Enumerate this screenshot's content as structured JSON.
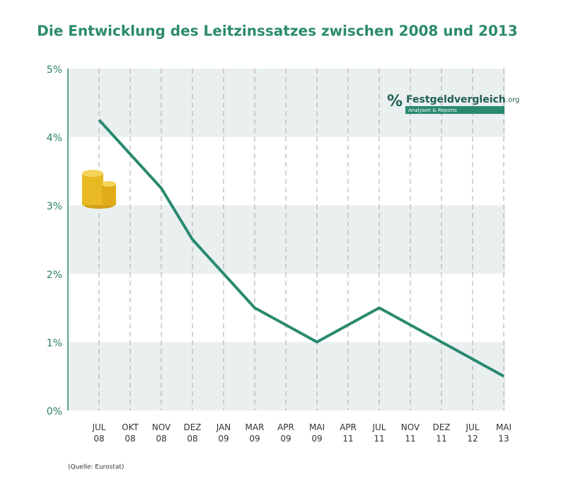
{
  "chart_data": {
    "type": "line",
    "title": "Die Entwicklung des Leitzinssatzes zwischen 2008 und 2013",
    "categories": [
      [
        "JUL",
        "08"
      ],
      [
        "OKT",
        "08"
      ],
      [
        "NOV",
        "08"
      ],
      [
        "DEZ",
        "08"
      ],
      [
        "JAN",
        "09"
      ],
      [
        "MAR",
        "09"
      ],
      [
        "APR",
        "09"
      ],
      [
        "MAI",
        "09"
      ],
      [
        "APR",
        "11"
      ],
      [
        "JUL",
        "11"
      ],
      [
        "NOV",
        "11"
      ],
      [
        "DEZ",
        "11"
      ],
      [
        "JUL",
        "12"
      ],
      [
        "MAI",
        "13"
      ]
    ],
    "values": [
      4.25,
      3.75,
      3.25,
      2.5,
      2.0,
      1.5,
      1.25,
      1.0,
      1.25,
      1.5,
      1.25,
      1.0,
      0.75,
      0.5
    ],
    "color": "#2a8a6f",
    "ylim": [
      0,
      5
    ],
    "yticks": [
      {
        "value": 0,
        "label": "0%"
      },
      {
        "value": 1,
        "label": "1%"
      },
      {
        "value": 2,
        "label": "2%"
      },
      {
        "value": 3,
        "label": "3%"
      },
      {
        "value": 4,
        "label": "4%"
      },
      {
        "value": 5,
        "label": "5%"
      }
    ],
    "grid": true,
    "source": "(Quelle: Eurostat)",
    "logo": {
      "symbol": "%",
      "name": "Festgeldvergleich",
      "tld": ".org",
      "tagline": "Analysen & Reports"
    }
  }
}
